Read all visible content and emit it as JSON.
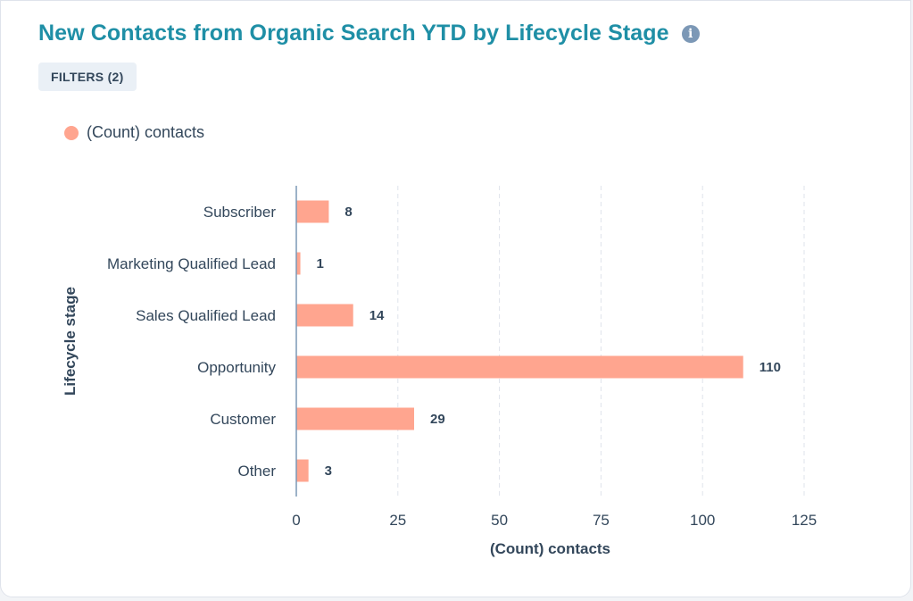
{
  "header": {
    "title": "New Contacts from Organic Search YTD by Lifecycle Stage",
    "info_icon": "info-icon"
  },
  "toolbar": {
    "filters_label": "FILTERS (2)"
  },
  "colors": {
    "title": "#1f8fa6",
    "bar": "#ffa58f",
    "text": "#33475b",
    "grid": "#dfe3eb",
    "axis": "#7c98b6"
  },
  "chart_data": {
    "type": "bar",
    "orientation": "horizontal",
    "categories": [
      "Subscriber",
      "Marketing Qualified Lead",
      "Sales Qualified Lead",
      "Opportunity",
      "Customer",
      "Other"
    ],
    "series": [
      {
        "name": "(Count) contacts",
        "values": [
          8,
          1,
          14,
          110,
          29,
          3
        ]
      }
    ],
    "xlabel": "(Count) contacts",
    "ylabel": "Lifecycle stage",
    "xlim": [
      0,
      125
    ],
    "xticks": [
      0,
      25,
      50,
      75,
      100,
      125
    ],
    "grid": true,
    "legend_position": "top-left",
    "data_labels": true
  }
}
